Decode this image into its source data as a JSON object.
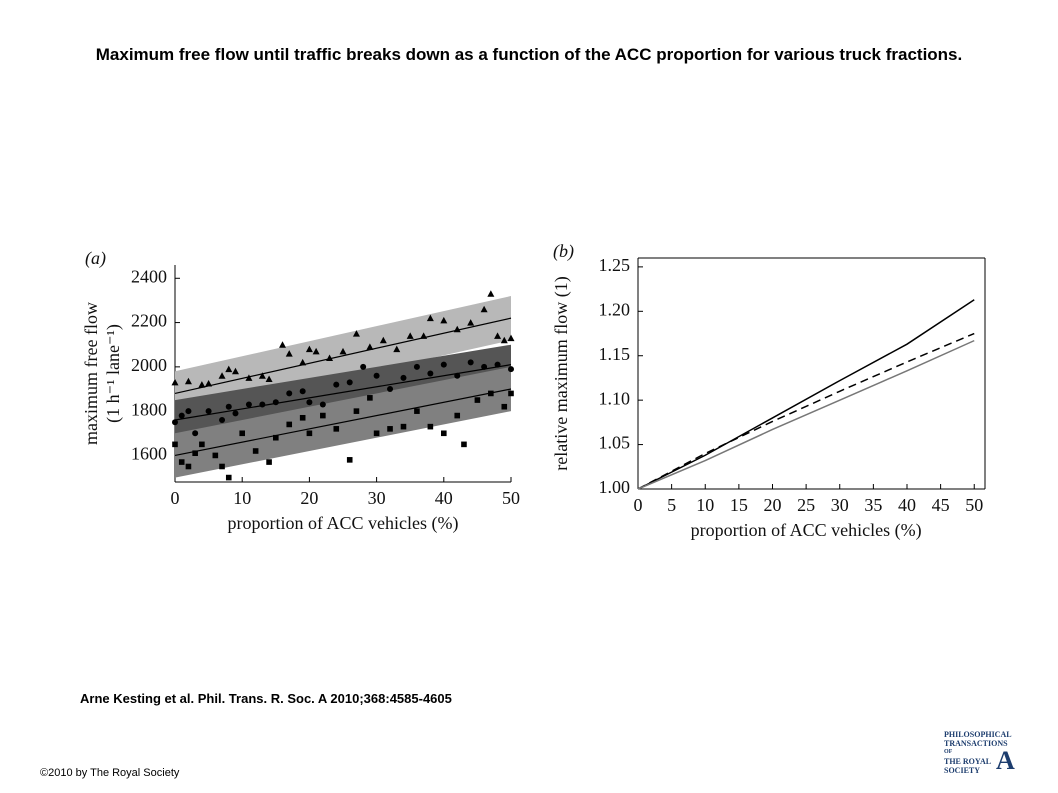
{
  "header": {
    "title": "Maximum free flow until traffic breaks down as a function of the ACC proportion for various truck fractions."
  },
  "citation": "Arne Kesting et al. Phil. Trans. R. Soc. A 2010;368:4585-4605",
  "copyright": "©2010 by The Royal Society",
  "logo": [
    "PHILOSOPHICAL",
    "TRANSACTIONS",
    "OF",
    "THE ROYAL",
    "SOCIETY",
    "A"
  ],
  "chart_data": [
    {
      "type": "scatter",
      "panel": "(a)",
      "xlabel": "proportion of ACC vehicles (%)",
      "ylabel": [
        "maximum free flow",
        "(1 h⁻¹ lane⁻¹)"
      ],
      "xlim": [
        0,
        50
      ],
      "ylim": [
        1480,
        2460
      ],
      "xticks": [
        0,
        10,
        20,
        30,
        40,
        50
      ],
      "yticks": [
        1600,
        1800,
        2000,
        2200,
        2400
      ],
      "series": [
        {
          "marker": "triangle",
          "color": "#000",
          "band_color": "#b8b8b8",
          "fit": [
            1880,
            2220
          ],
          "band": 100,
          "x": [
            0,
            2,
            4,
            5,
            7,
            8,
            9,
            11,
            13,
            14,
            16,
            17,
            19,
            20,
            21,
            23,
            25,
            27,
            29,
            31,
            33,
            35,
            37,
            38,
            40,
            42,
            44,
            46,
            47,
            48,
            49,
            50
          ],
          "values": [
            1930,
            1935,
            1920,
            1925,
            1960,
            1990,
            1980,
            1950,
            1960,
            1945,
            2100,
            2060,
            2020,
            2080,
            2070,
            2040,
            2070,
            2150,
            2090,
            2120,
            2080,
            2140,
            2140,
            2220,
            2210,
            2170,
            2200,
            2260,
            2330,
            2140,
            2120,
            2130
          ]
        },
        {
          "marker": "circle",
          "color": "#000",
          "band_color": "#555555",
          "fit": [
            1760,
            2010
          ],
          "band": 90,
          "x": [
            0,
            1,
            2,
            3,
            5,
            7,
            8,
            9,
            11,
            13,
            15,
            17,
            19,
            20,
            22,
            24,
            26,
            28,
            30,
            32,
            34,
            36,
            38,
            40,
            42,
            44,
            46,
            48,
            50
          ],
          "values": [
            1750,
            1780,
            1800,
            1700,
            1800,
            1760,
            1820,
            1790,
            1830,
            1830,
            1840,
            1880,
            1890,
            1840,
            1830,
            1920,
            1930,
            2000,
            1960,
            1900,
            1950,
            2000,
            1970,
            2010,
            1960,
            2020,
            2000,
            2010,
            1990
          ]
        },
        {
          "marker": "square",
          "color": "#000",
          "band_color": "#808080",
          "fit": [
            1600,
            1900
          ],
          "band": 100,
          "x": [
            0,
            1,
            2,
            3,
            4,
            6,
            7,
            8,
            10,
            12,
            14,
            15,
            17,
            19,
            20,
            22,
            24,
            26,
            27,
            29,
            30,
            32,
            34,
            36,
            38,
            40,
            42,
            43,
            45,
            47,
            49,
            50
          ],
          "values": [
            1650,
            1570,
            1550,
            1610,
            1650,
            1600,
            1550,
            1500,
            1700,
            1620,
            1570,
            1680,
            1740,
            1770,
            1700,
            1780,
            1720,
            1580,
            1800,
            1860,
            1700,
            1720,
            1730,
            1800,
            1730,
            1700,
            1780,
            1650,
            1850,
            1880,
            1820,
            1880
          ]
        }
      ]
    },
    {
      "type": "line",
      "panel": "(b)",
      "xlabel": "proportion of ACC vehicles (%)",
      "ylabel": "relative maximum flow (1)",
      "xlim": [
        0,
        51.6
      ],
      "ylim": [
        1.0,
        1.26
      ],
      "xticks": [
        0,
        5,
        10,
        15,
        20,
        25,
        30,
        35,
        40,
        45,
        50
      ],
      "yticks": [
        {
          "value": 1.0,
          "label": "1.00"
        },
        {
          "value": 1.05,
          "label": "1.05"
        },
        {
          "value": 1.1,
          "label": "1.10"
        },
        {
          "value": 1.15,
          "label": "1.15"
        },
        {
          "value": 1.2,
          "label": "1.20"
        },
        {
          "value": 1.25,
          "label": "1.25"
        }
      ],
      "x": [
        0,
        10,
        20,
        30,
        40,
        50
      ],
      "series": [
        {
          "color": "#000",
          "dash": false,
          "values": [
            1.0,
            1.038,
            1.08,
            1.122,
            1.163,
            1.213
          ]
        },
        {
          "color": "#000",
          "dash": true,
          "values": [
            1.0,
            1.04,
            1.076,
            1.11,
            1.143,
            1.175
          ]
        },
        {
          "color": "#777",
          "dash": false,
          "values": [
            1.0,
            1.032,
            1.067,
            1.1,
            1.133,
            1.167
          ]
        }
      ]
    }
  ]
}
